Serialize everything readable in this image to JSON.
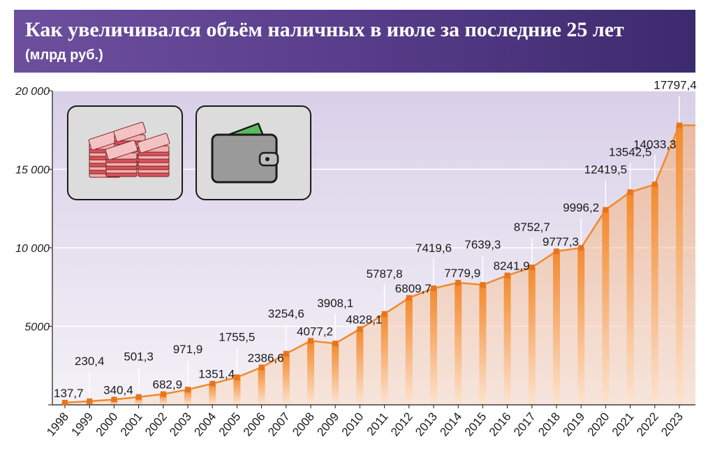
{
  "header": {
    "title": "Как увеличивался объём наличных в июле за последние 25 лет",
    "subtitle": "(млрд руб.)"
  },
  "icons": {
    "money": "ruble-banknote-stacks-icon",
    "wallet": "wallet-icon"
  },
  "colors": {
    "header_bg": "#5b3f8d",
    "plot_bg": "#e6e0ef",
    "line": "#f08a2c",
    "bar": "#f59a4a"
  },
  "chart_data": {
    "type": "area",
    "title": "Как увеличивался объём наличных в июле за последние 25 лет",
    "ylabel": "(млрд руб.)",
    "xlabel": "",
    "x": [
      "1998",
      "1999",
      "2000",
      "2001",
      "2002",
      "2003",
      "2004",
      "2005",
      "2006",
      "2007",
      "2008",
      "2009",
      "2010",
      "2011",
      "2012",
      "2013",
      "2014",
      "2015",
      "2016",
      "2017",
      "2018",
      "2019",
      "2020",
      "2021",
      "2022",
      "2023"
    ],
    "values": [
      137.7,
      230.4,
      340.4,
      501.3,
      682.9,
      971.9,
      1351.4,
      1755.5,
      2386.6,
      3254.6,
      4077.2,
      3908.1,
      4828.1,
      5787.8,
      6809.7,
      7419.6,
      7779.9,
      7639.3,
      8241.9,
      8752.7,
      9777.3,
      9996.2,
      12419.5,
      13542.5,
      14033.3,
      17797.4
    ],
    "labels": [
      "137,7",
      "230,4",
      "340,4",
      "501,3",
      "682,9",
      "971,9",
      "1351,4",
      "1755,5",
      "2386,6",
      "3254,6",
      "4077,2",
      "3908,1",
      "4828,1",
      "5787,8",
      "6809,7",
      "7419,6",
      "7779,9",
      "7639,3",
      "8241,9",
      "8752,7",
      "9777,3",
      "9996,2",
      "12419,5",
      "13542,5",
      "14033,3",
      "17797,4"
    ],
    "label_above": [
      false,
      true,
      false,
      true,
      false,
      true,
      false,
      true,
      false,
      true,
      false,
      true,
      false,
      true,
      false,
      true,
      false,
      true,
      false,
      true,
      false,
      true,
      true,
      true,
      true,
      true
    ],
    "yticks": [
      0,
      5000,
      10000,
      15000,
      20000
    ],
    "ytick_labels": [
      "",
      "5000",
      "10 000",
      "15 000",
      "20 000"
    ],
    "ylim": [
      0,
      20000
    ],
    "grid": true
  }
}
